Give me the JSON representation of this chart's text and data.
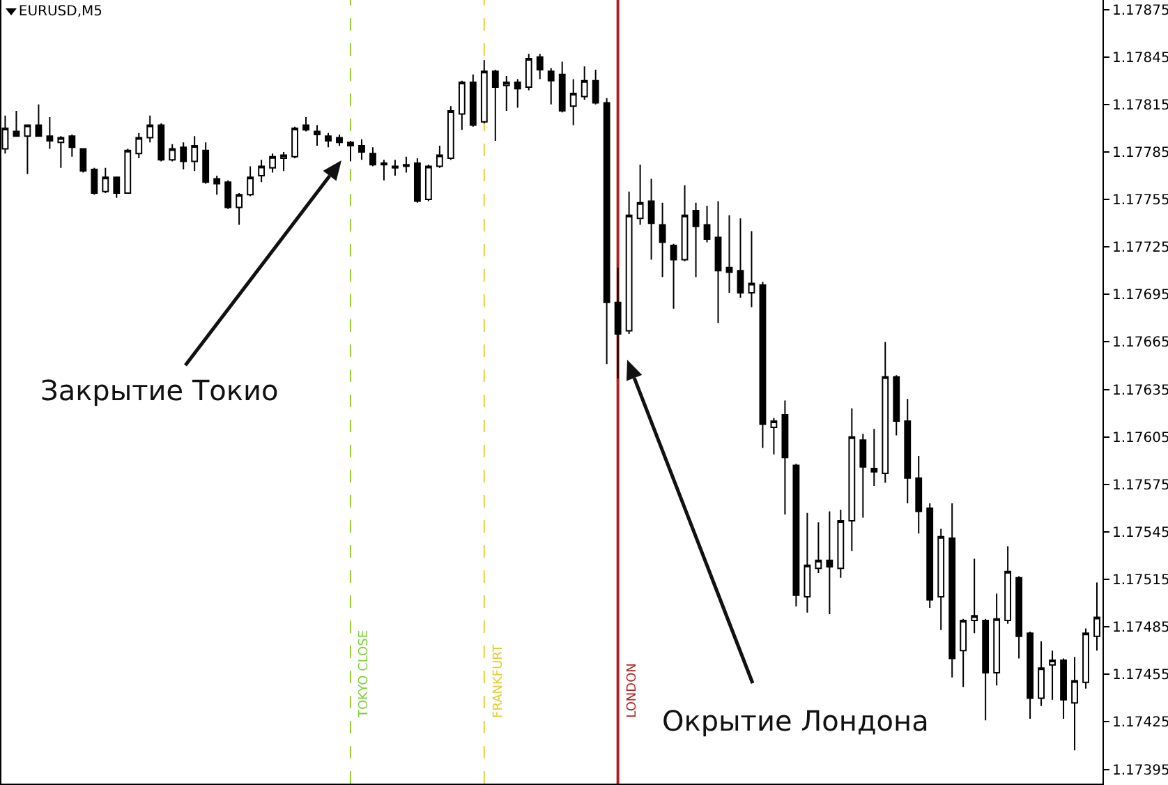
{
  "chart_data": {
    "type": "candlestick",
    "title": "EURUSD,M5",
    "categories": [
      null,
      null,
      null,
      null,
      null,
      null,
      null,
      null,
      null,
      null,
      null,
      null,
      null,
      null,
      null,
      null,
      null,
      null,
      null,
      null,
      null,
      null,
      null,
      null,
      null,
      null,
      null,
      null,
      null,
      null,
      null,
      null,
      null,
      null,
      null,
      null,
      null,
      null,
      null,
      null,
      null,
      null,
      null,
      null,
      null,
      null,
      null,
      null,
      null,
      null,
      null,
      null,
      null,
      null,
      null,
      null,
      null,
      null,
      null,
      null,
      null,
      null,
      null,
      null,
      null,
      null,
      null,
      null,
      null,
      null,
      null,
      null,
      null,
      null,
      null,
      null,
      null,
      null,
      null,
      null,
      null,
      null,
      null,
      null,
      null,
      null,
      null,
      null,
      null,
      null,
      null,
      null,
      null,
      null,
      null,
      null,
      null,
      null,
      null
    ],
    "ohlc": [
      [
        1.17787,
        1.17808,
        1.17784,
        1.178
      ],
      [
        1.17798,
        1.17811,
        1.17795,
        1.17795
      ],
      [
        1.17795,
        1.17802,
        1.17771,
        1.17802
      ],
      [
        1.17802,
        1.17815,
        1.17795,
        1.17795
      ],
      [
        1.17795,
        1.17807,
        1.17787,
        1.17792
      ],
      [
        1.17791,
        1.17795,
        1.17775,
        1.17794
      ],
      [
        1.17795,
        1.17796,
        1.17782,
        1.17788
      ],
      [
        1.17787,
        1.17787,
        1.17772,
        1.17773
      ],
      [
        1.17774,
        1.17775,
        1.17758,
        1.17759
      ],
      [
        1.1776,
        1.17775,
        1.17759,
        1.17769
      ],
      [
        1.17769,
        1.17769,
        1.17756,
        1.17759
      ],
      [
        1.17759,
        1.17787,
        1.17759,
        1.17786
      ],
      [
        1.17784,
        1.17797,
        1.17781,
        1.17794
      ],
      [
        1.17794,
        1.17808,
        1.17791,
        1.17802
      ],
      [
        1.17802,
        1.17803,
        1.17779,
        1.1778
      ],
      [
        1.1778,
        1.1779,
        1.17779,
        1.17787
      ],
      [
        1.17788,
        1.17791,
        1.17774,
        1.17779
      ],
      [
        1.17779,
        1.17795,
        1.17773,
        1.17789
      ],
      [
        1.17786,
        1.17791,
        1.17765,
        1.17766
      ],
      [
        1.17768,
        1.1777,
        1.17758,
        1.17765
      ],
      [
        1.17766,
        1.17767,
        1.17749,
        1.1775
      ],
      [
        1.1775,
        1.17759,
        1.17739,
        1.17758
      ],
      [
        1.17758,
        1.17776,
        1.17757,
        1.17769
      ],
      [
        1.1777,
        1.1778,
        1.17766,
        1.17776
      ],
      [
        1.17775,
        1.17784,
        1.17772,
        1.17782
      ],
      [
        1.17781,
        1.17785,
        1.17773,
        1.17783
      ],
      [
        1.17782,
        1.17801,
        1.17781,
        1.178
      ],
      [
        1.17802,
        1.17807,
        1.17798,
        1.17799
      ],
      [
        1.17798,
        1.17802,
        1.17789,
        1.17796
      ],
      [
        1.17795,
        1.17797,
        1.17788,
        1.17792
      ],
      [
        1.17794,
        1.17796,
        1.17789,
        1.17791
      ],
      [
        1.17791,
        1.17792,
        1.17779,
        1.17789
      ],
      [
        1.17789,
        1.17793,
        1.1778,
        1.17785
      ],
      [
        1.17784,
        1.17788,
        1.17776,
        1.17777
      ],
      [
        1.17777,
        1.1778,
        1.17767,
        1.17778
      ],
      [
        1.17776,
        1.1778,
        1.1777,
        1.17775
      ],
      [
        1.17777,
        1.17782,
        1.17772,
        1.17776
      ],
      [
        1.17778,
        1.17781,
        1.17753,
        1.17754
      ],
      [
        1.17755,
        1.17777,
        1.17754,
        1.17776
      ],
      [
        1.17776,
        1.17789,
        1.17775,
        1.17783
      ],
      [
        1.17781,
        1.17814,
        1.1778,
        1.17811
      ],
      [
        1.17809,
        1.1783,
        1.17799,
        1.17829
      ],
      [
        1.17829,
        1.17834,
        1.17801,
        1.17802
      ],
      [
        1.17804,
        1.17843,
        1.17803,
        1.17836
      ],
      [
        1.17836,
        1.17837,
        1.17792,
        1.17826
      ],
      [
        1.17827,
        1.17833,
        1.17811,
        1.17829
      ],
      [
        1.17829,
        1.17831,
        1.17813,
        1.17825
      ],
      [
        1.17826,
        1.17847,
        1.17824,
        1.17844
      ],
      [
        1.17845,
        1.17847,
        1.17831,
        1.17837
      ],
      [
        1.17836,
        1.17838,
        1.17815,
        1.1783
      ],
      [
        1.17834,
        1.17842,
        1.1781,
        1.17811
      ],
      [
        1.17814,
        1.17831,
        1.17802,
        1.17822
      ],
      [
        1.1782,
        1.17839,
        1.17818,
        1.1783
      ],
      [
        1.1783,
        1.17837,
        1.17815,
        1.17816
      ],
      [
        1.17816,
        1.17819,
        1.17651,
        1.1769
      ],
      [
        1.1769,
        1.17712,
        1.17642,
        1.1767
      ],
      [
        1.17672,
        1.1776,
        1.1767,
        1.17745
      ],
      [
        1.17743,
        1.17777,
        1.17739,
        1.17753
      ],
      [
        1.17754,
        1.17768,
        1.17717,
        1.1774
      ],
      [
        1.17739,
        1.17753,
        1.17706,
        1.17728
      ],
      [
        1.17726,
        1.17727,
        1.17686,
        1.17717
      ],
      [
        1.17717,
        1.17764,
        1.17716,
        1.17745
      ],
      [
        1.17748,
        1.17753,
        1.17706,
        1.17738
      ],
      [
        1.17739,
        1.17751,
        1.17728,
        1.1773
      ],
      [
        1.17731,
        1.17754,
        1.17677,
        1.1771
      ],
      [
        1.17712,
        1.17745,
        1.17696,
        1.17709
      ],
      [
        1.1771,
        1.17743,
        1.17693,
        1.17696
      ],
      [
        1.17696,
        1.17735,
        1.17687,
        1.17702
      ],
      [
        1.17701,
        1.17703,
        1.17598,
        1.17613
      ],
      [
        1.17611,
        1.17617,
        1.17594,
        1.17615
      ],
      [
        1.17619,
        1.17628,
        1.17556,
        1.17592
      ],
      [
        1.17587,
        1.17588,
        1.17498,
        1.17505
      ],
      [
        1.17504,
        1.17557,
        1.17494,
        1.17524
      ],
      [
        1.17522,
        1.17551,
        1.17519,
        1.17527
      ],
      [
        1.17527,
        1.17558,
        1.17493,
        1.17523
      ],
      [
        1.17522,
        1.17559,
        1.17516,
        1.17552
      ],
      [
        1.17552,
        1.17623,
        1.17533,
        1.17605
      ],
      [
        1.17603,
        1.17607,
        1.17554,
        1.17586
      ],
      [
        1.17585,
        1.1761,
        1.17574,
        1.17583
      ],
      [
        1.17582,
        1.17665,
        1.17576,
        1.17643
      ],
      [
        1.17643,
        1.17644,
        1.17606,
        1.17615
      ],
      [
        1.17615,
        1.17629,
        1.17563,
        1.17579
      ],
      [
        1.17579,
        1.17593,
        1.17544,
        1.17558
      ],
      [
        1.1756,
        1.17563,
        1.17497,
        1.17502
      ],
      [
        1.17504,
        1.17547,
        1.17483,
        1.17542
      ],
      [
        1.17541,
        1.17563,
        1.17453,
        1.17465
      ],
      [
        1.1747,
        1.1749,
        1.17447,
        1.17489
      ],
      [
        1.17489,
        1.17528,
        1.17481,
        1.17492
      ],
      [
        1.17489,
        1.1749,
        1.17426,
        1.17456
      ],
      [
        1.17456,
        1.17506,
        1.17448,
        1.1749
      ],
      [
        1.17489,
        1.17536,
        1.17487,
        1.1752
      ],
      [
        1.17516,
        1.17517,
        1.17465,
        1.17479
      ],
      [
        1.17481,
        1.17482,
        1.17427,
        1.1744
      ],
      [
        1.1744,
        1.17476,
        1.17435,
        1.17459
      ],
      [
        1.17461,
        1.1747,
        1.17439,
        1.17464
      ],
      [
        1.17464,
        1.17465,
        1.17427,
        1.17439
      ],
      [
        1.17437,
        1.17466,
        1.17407,
        1.17451
      ],
      [
        1.1745,
        1.17484,
        1.17446,
        1.17481
      ],
      [
        1.17479,
        1.17513,
        1.1747,
        1.17491
      ]
    ],
    "ylim": [
      1.17386,
      1.17881
    ],
    "yticks": [
      1.17395,
      1.17425,
      1.17455,
      1.17485,
      1.17515,
      1.17545,
      1.17575,
      1.17605,
      1.17635,
      1.17665,
      1.17695,
      1.17725,
      1.17755,
      1.17785,
      1.17815,
      1.17845,
      1.17875
    ],
    "tick_labels": "y",
    "annotations": [
      "TOKYO CLOSE",
      "FRANKFURT",
      "LONDON",
      "Закрытие Токио",
      "Окрытие Лондона"
    ]
  }
}
